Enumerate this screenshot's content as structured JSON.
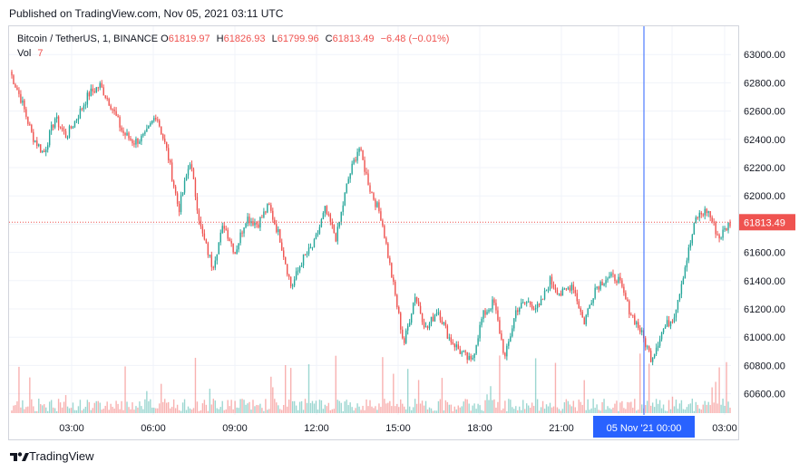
{
  "header": {
    "published_text": "Published on TradingView.com, Nov 05, 2021 03:11 UTC"
  },
  "legend": {
    "symbol": "Bitcoin / TetherUS, 1, BINANCE",
    "open_label": "O",
    "open_value": "61819.97",
    "high_label": "H",
    "high_value": "61826.93",
    "low_label": "L",
    "low_value": "61799.96",
    "close_label": "C",
    "close_value": "61813.49",
    "change_value": "−6.48 (−0.01%)",
    "volume_label": "Vol",
    "volume_value": "7"
  },
  "footer": {
    "logo_text": "TradingView"
  },
  "colors": {
    "up": "#26a69a",
    "down": "#ef5350",
    "grid": "#f0f3fa",
    "crosshair": "#2962ff",
    "price_label_bg": "#ef5350"
  },
  "chart_data": {
    "type": "candlestick",
    "symbol": "Bitcoin / TetherUS",
    "interval": "1",
    "exchange": "BINANCE",
    "ylim": [
      60450,
      63200
    ],
    "y_ticks": [
      "63000.00",
      "62800.00",
      "62600.00",
      "62400.00",
      "62200.00",
      "62000.00",
      "61800.00",
      "61600.00",
      "61400.00",
      "61200.00",
      "61000.00",
      "60800.00",
      "60600.00"
    ],
    "x_ticks": [
      "03:00",
      "06:00",
      "09:00",
      "12:00",
      "15:00",
      "18:00",
      "21:00",
      "05 Nov '21",
      "00:00",
      "03:00"
    ],
    "last_price": "61813.49",
    "crosshair_label": "05 Nov '21   00:00",
    "price_path": [
      {
        "t": "01:00",
        "price": 62880
      },
      {
        "t": "01:30",
        "price": 62680
      },
      {
        "t": "02:00",
        "price": 62420
      },
      {
        "t": "02:30",
        "price": 62300
      },
      {
        "t": "03:00",
        "price": 62550
      },
      {
        "t": "03:30",
        "price": 62420
      },
      {
        "t": "04:00",
        "price": 62560
      },
      {
        "t": "04:30",
        "price": 62720
      },
      {
        "t": "05:00",
        "price": 62780
      },
      {
        "t": "05:30",
        "price": 62640
      },
      {
        "t": "06:00",
        "price": 62450
      },
      {
        "t": "06:30",
        "price": 62380
      },
      {
        "t": "07:00",
        "price": 62420
      },
      {
        "t": "07:30",
        "price": 62580
      },
      {
        "t": "08:00",
        "price": 62300
      },
      {
        "t": "08:20",
        "price": 61900
      },
      {
        "t": "08:40",
        "price": 62250
      },
      {
        "t": "09:00",
        "price": 61750
      },
      {
        "t": "09:20",
        "price": 61500
      },
      {
        "t": "09:40",
        "price": 61800
      },
      {
        "t": "10:00",
        "price": 61600
      },
      {
        "t": "10:30",
        "price": 61850
      },
      {
        "t": "11:00",
        "price": 61800
      },
      {
        "t": "11:30",
        "price": 61930
      },
      {
        "t": "12:00",
        "price": 61700
      },
      {
        "t": "12:20",
        "price": 61350
      },
      {
        "t": "12:40",
        "price": 61550
      },
      {
        "t": "13:00",
        "price": 61650
      },
      {
        "t": "13:30",
        "price": 61900
      },
      {
        "t": "14:00",
        "price": 61700
      },
      {
        "t": "14:20",
        "price": 62100
      },
      {
        "t": "14:30",
        "price": 62350
      },
      {
        "t": "14:45",
        "price": 62050
      },
      {
        "t": "15:00",
        "price": 61850
      },
      {
        "t": "15:10",
        "price": 61400
      },
      {
        "t": "15:20",
        "price": 60950
      },
      {
        "t": "15:40",
        "price": 61300
      },
      {
        "t": "16:00",
        "price": 61050
      },
      {
        "t": "16:30",
        "price": 61200
      },
      {
        "t": "17:00",
        "price": 61000
      },
      {
        "t": "17:30",
        "price": 60900
      },
      {
        "t": "18:00",
        "price": 60820
      },
      {
        "t": "18:20",
        "price": 61150
      },
      {
        "t": "18:40",
        "price": 61250
      },
      {
        "t": "19:00",
        "price": 60850
      },
      {
        "t": "19:30",
        "price": 61200
      },
      {
        "t": "20:00",
        "price": 61250
      },
      {
        "t": "20:30",
        "price": 61200
      },
      {
        "t": "21:00",
        "price": 61400
      },
      {
        "t": "21:30",
        "price": 61300
      },
      {
        "t": "22:00",
        "price": 61380
      },
      {
        "t": "22:30",
        "price": 61100
      },
      {
        "t": "23:00",
        "price": 61350
      },
      {
        "t": "23:30",
        "price": 61420
      },
      {
        "t": "00:00",
        "price": 61420
      },
      {
        "t": "00:20",
        "price": 61200
      },
      {
        "t": "00:40",
        "price": 61050
      },
      {
        "t": "01:00",
        "price": 60850
      },
      {
        "t": "01:20",
        "price": 61050
      },
      {
        "t": "01:40",
        "price": 61150
      },
      {
        "t": "02:00",
        "price": 61500
      },
      {
        "t": "02:20",
        "price": 61850
      },
      {
        "t": "02:30",
        "price": 61900
      },
      {
        "t": "02:45",
        "price": 61700
      },
      {
        "t": "03:05",
        "price": 61813
      }
    ]
  }
}
